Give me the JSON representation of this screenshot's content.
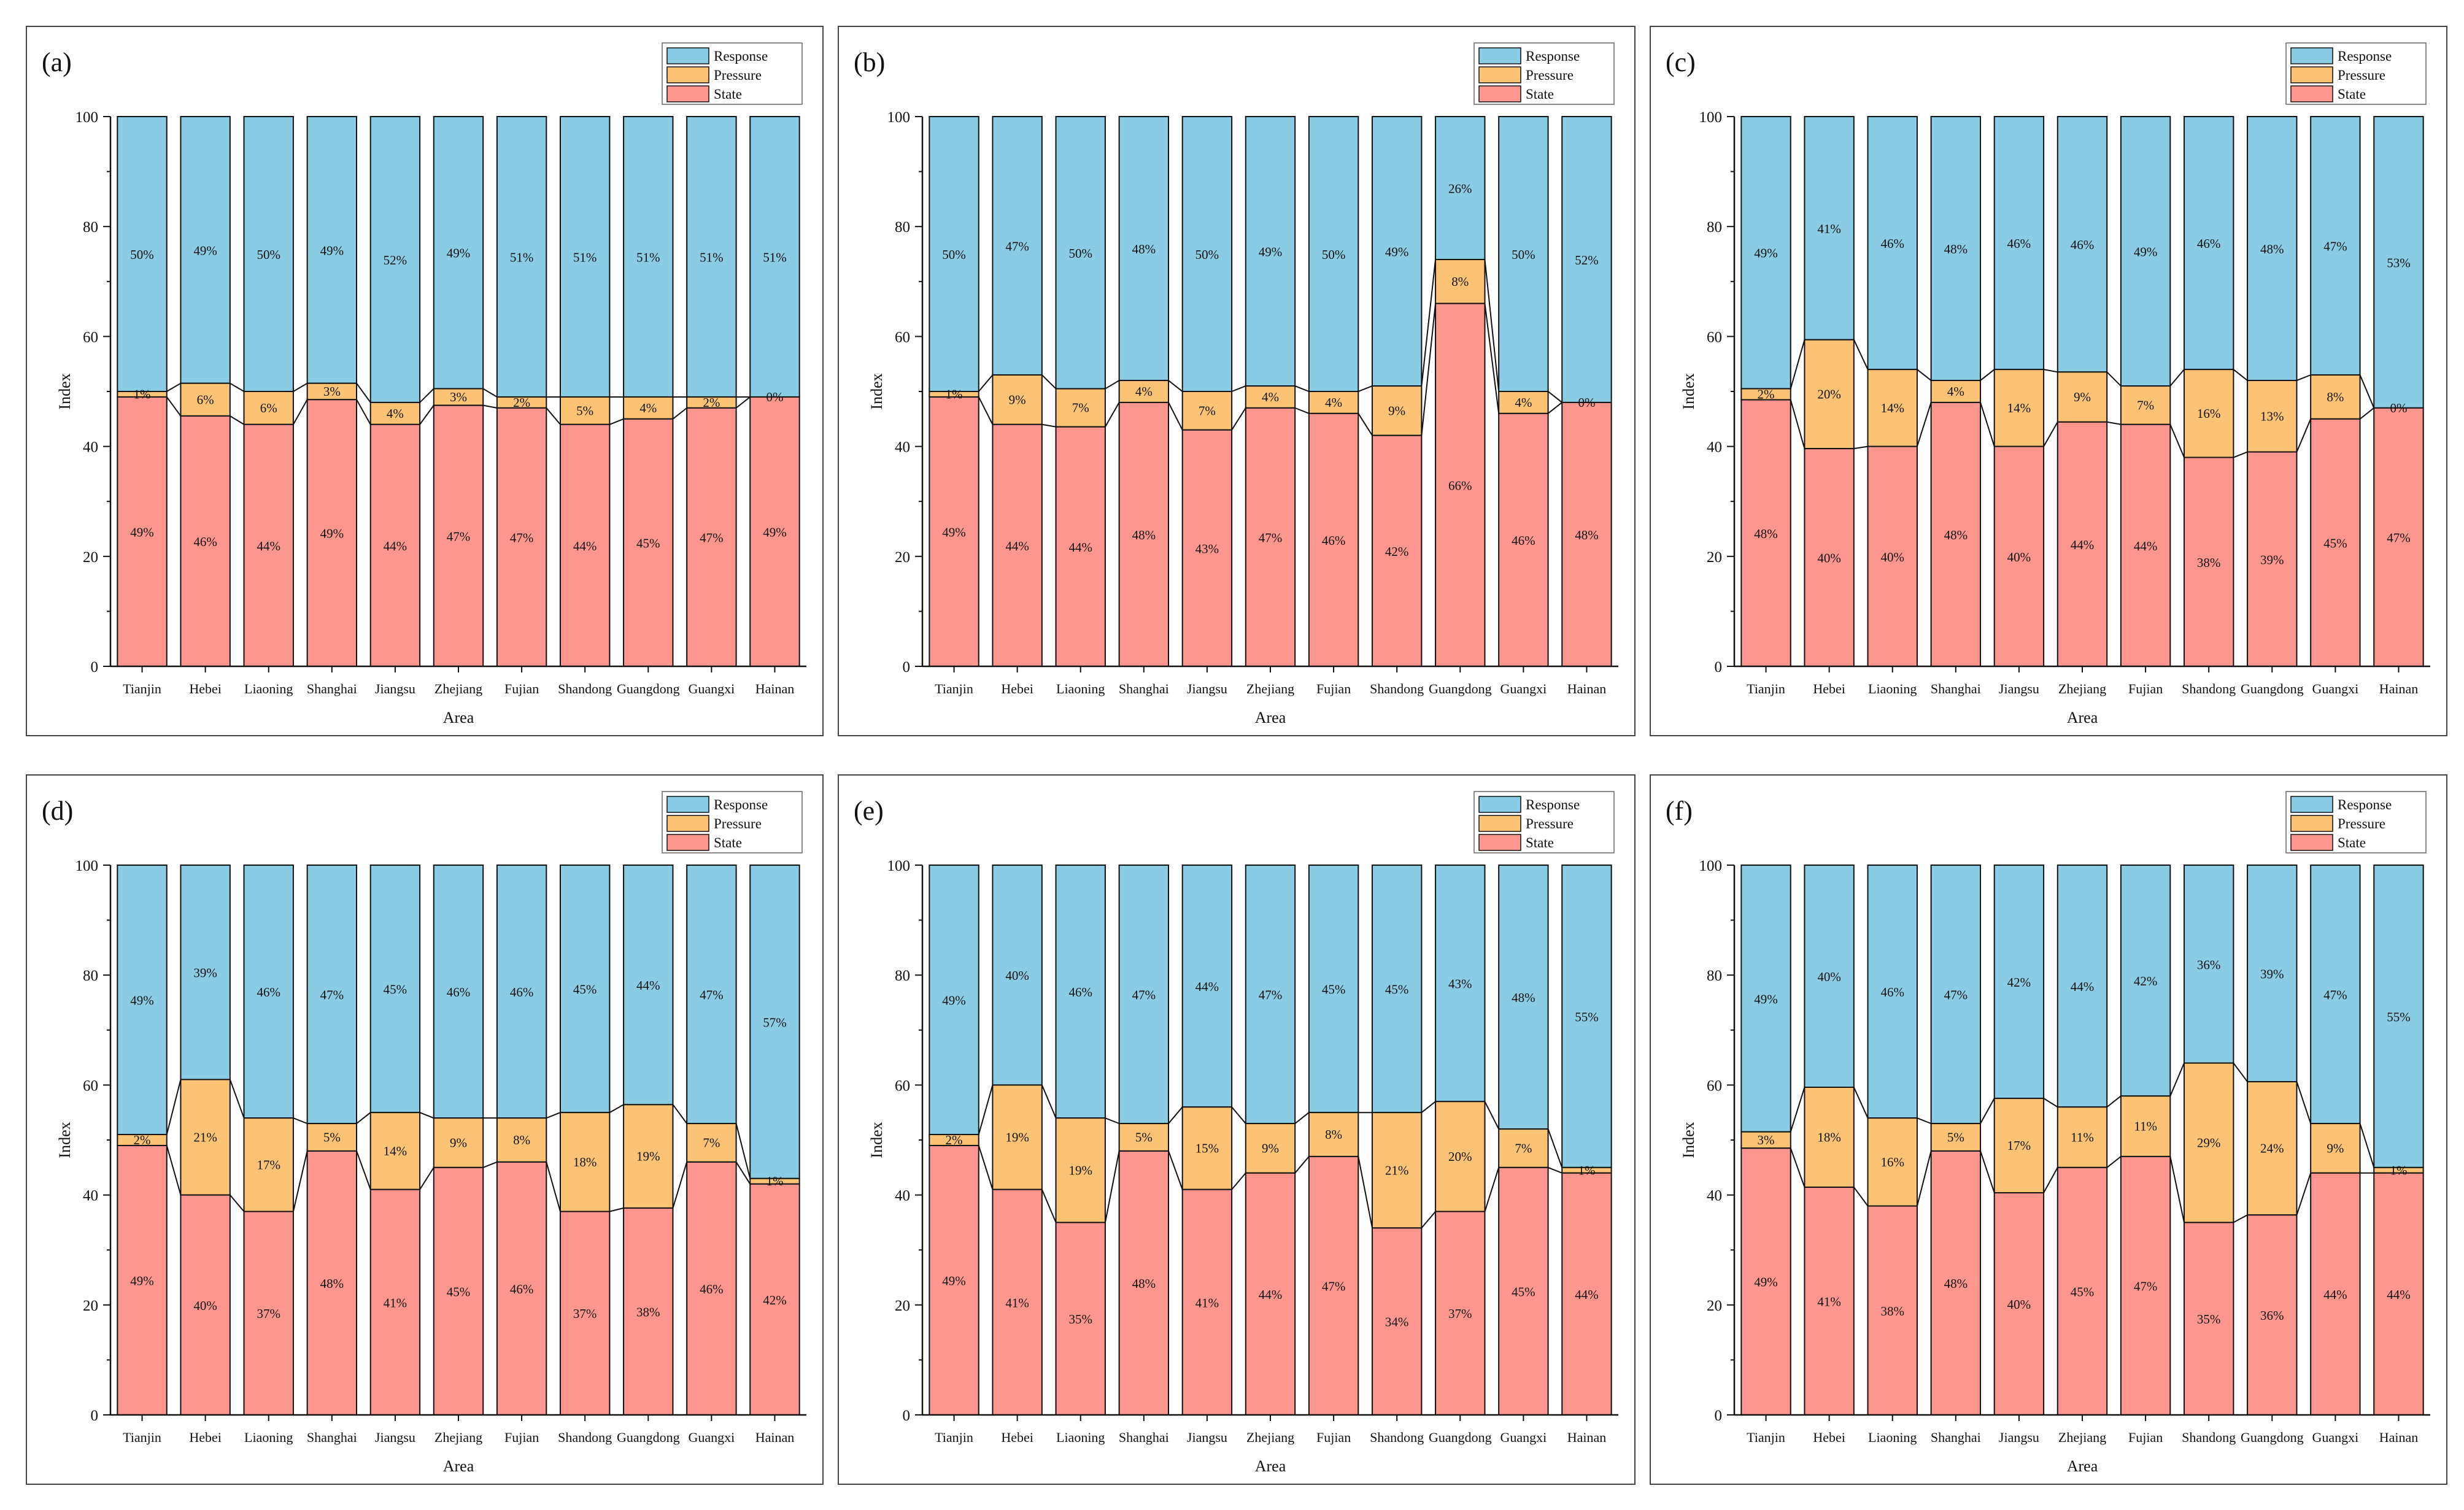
{
  "colors": {
    "response": "#8ACCE3",
    "pressure": "#FBC373",
    "state": "#FC968F",
    "outline": "#111111"
  },
  "chart_data": [
    {
      "type": "bar",
      "stacked": true,
      "panel_label": "(a)",
      "xlabel": "Area",
      "ylabel": "Index",
      "ylim": [
        0,
        100
      ],
      "yticks": [
        "0",
        "20",
        "40",
        "60",
        "80",
        "100"
      ],
      "categories": [
        "Tianjin",
        "Hebei",
        "Liaoning",
        "Shanghai",
        "Jiangsu",
        "Zhejiang",
        "Fujian",
        "Shandong",
        "Guangdong",
        "Guangxi",
        "Hainan"
      ],
      "legend": [
        "Response",
        "Pressure",
        "State"
      ],
      "legend_position": "top-right",
      "series": [
        {
          "name": "State",
          "values": [
            49,
            46,
            44,
            49,
            44,
            47,
            47,
            44,
            45,
            47,
            49
          ],
          "labels": [
            "49%",
            "46%",
            "44%",
            "49%",
            "44%",
            "47%",
            "47%",
            "44%",
            "45%",
            "47%",
            "49%"
          ]
        },
        {
          "name": "Pressure",
          "values": [
            1,
            6,
            6,
            3,
            4,
            3,
            2,
            5,
            4,
            2,
            0
          ],
          "labels": [
            "1%",
            "6%",
            "6%",
            "3%",
            "4%",
            "3%",
            "2%",
            "5%",
            "4%",
            "2%",
            "0%"
          ]
        },
        {
          "name": "Response",
          "values": [
            50,
            49,
            50,
            49,
            52,
            49,
            51,
            51,
            51,
            51,
            51
          ],
          "labels": [
            "50%",
            "49%",
            "50%",
            "49%",
            "52%",
            "49%",
            "51%",
            "51%",
            "51%",
            "51%",
            "51%"
          ]
        }
      ]
    },
    {
      "type": "bar",
      "stacked": true,
      "panel_label": "(b)",
      "xlabel": "Area",
      "ylabel": "Index",
      "ylim": [
        0,
        100
      ],
      "yticks": [
        "0",
        "20",
        "40",
        "60",
        "80",
        "100"
      ],
      "categories": [
        "Tianjin",
        "Hebei",
        "Liaoning",
        "Shanghai",
        "Jiangsu",
        "Zhejiang",
        "Fujian",
        "Shandong",
        "Guangdong",
        "Guangxi",
        "Hainan"
      ],
      "legend": [
        "Response",
        "Pressure",
        "State"
      ],
      "legend_position": "top-right",
      "series": [
        {
          "name": "State",
          "values": [
            49,
            44,
            44,
            48,
            43,
            47,
            46,
            42,
            66,
            46,
            48
          ],
          "labels": [
            "49%",
            "44%",
            "44%",
            "48%",
            "43%",
            "47%",
            "46%",
            "42%",
            "66%",
            "46%",
            "48%"
          ]
        },
        {
          "name": "Pressure",
          "values": [
            1,
            9,
            7,
            4,
            7,
            4,
            4,
            9,
            8,
            4,
            0
          ],
          "labels": [
            "1%",
            "9%",
            "7%",
            "4%",
            "7%",
            "4%",
            "4%",
            "9%",
            "8%",
            "4%",
            "0%"
          ]
        },
        {
          "name": "Response",
          "values": [
            50,
            47,
            50,
            48,
            50,
            49,
            50,
            49,
            26,
            50,
            52
          ],
          "labels": [
            "50%",
            "47%",
            "50%",
            "48%",
            "50%",
            "49%",
            "50%",
            "49%",
            "26%",
            "50%",
            "52%"
          ]
        }
      ]
    },
    {
      "type": "bar",
      "stacked": true,
      "panel_label": "(c)",
      "xlabel": "Area",
      "ylabel": "Index",
      "ylim": [
        0,
        100
      ],
      "yticks": [
        "0",
        "20",
        "40",
        "60",
        "80",
        "100"
      ],
      "categories": [
        "Tianjin",
        "Hebei",
        "Liaoning",
        "Shanghai",
        "Jiangsu",
        "Zhejiang",
        "Fujian",
        "Shandong",
        "Guangdong",
        "Guangxi",
        "Hainan"
      ],
      "legend": [
        "Response",
        "Pressure",
        "State"
      ],
      "legend_position": "top-right",
      "series": [
        {
          "name": "State",
          "values": [
            48,
            40,
            40,
            48,
            40,
            44,
            44,
            38,
            39,
            45,
            47
          ],
          "labels": [
            "48%",
            "40%",
            "40%",
            "48%",
            "40%",
            "44%",
            "44%",
            "38%",
            "39%",
            "45%",
            "47%"
          ]
        },
        {
          "name": "Pressure",
          "values": [
            2,
            20,
            14,
            4,
            14,
            9,
            7,
            16,
            13,
            8,
            0
          ],
          "labels": [
            "2%",
            "20%",
            "14%",
            "4%",
            "14%",
            "9%",
            "7%",
            "16%",
            "13%",
            "8%",
            "0%"
          ]
        },
        {
          "name": "Response",
          "values": [
            49,
            41,
            46,
            48,
            46,
            46,
            49,
            46,
            48,
            47,
            53
          ],
          "labels": [
            "49%",
            "41%",
            "46%",
            "48%",
            "46%",
            "46%",
            "49%",
            "46%",
            "48%",
            "47%",
            "53%"
          ]
        }
      ]
    },
    {
      "type": "bar",
      "stacked": true,
      "panel_label": "(d)",
      "xlabel": "Area",
      "ylabel": "Index",
      "ylim": [
        0,
        100
      ],
      "yticks": [
        "0",
        "20",
        "40",
        "60",
        "80",
        "100"
      ],
      "categories": [
        "Tianjin",
        "Hebei",
        "Liaoning",
        "Shanghai",
        "Jiangsu",
        "Zhejiang",
        "Fujian",
        "Shandong",
        "Guangdong",
        "Guangxi",
        "Hainan"
      ],
      "legend": [
        "Response",
        "Pressure",
        "State"
      ],
      "legend_position": "top-right",
      "series": [
        {
          "name": "State",
          "values": [
            49,
            40,
            37,
            48,
            41,
            45,
            46,
            37,
            38,
            46,
            42
          ],
          "labels": [
            "49%",
            "40%",
            "37%",
            "48%",
            "41%",
            "45%",
            "46%",
            "37%",
            "38%",
            "46%",
            "42%"
          ]
        },
        {
          "name": "Pressure",
          "values": [
            2,
            21,
            17,
            5,
            14,
            9,
            8,
            18,
            19,
            7,
            1
          ],
          "labels": [
            "2%",
            "21%",
            "17%",
            "5%",
            "14%",
            "9%",
            "8%",
            "18%",
            "19%",
            "7%",
            "1%"
          ]
        },
        {
          "name": "Response",
          "values": [
            49,
            39,
            46,
            47,
            45,
            46,
            46,
            45,
            44,
            47,
            57
          ],
          "labels": [
            "49%",
            "39%",
            "46%",
            "47%",
            "45%",
            "46%",
            "46%",
            "45%",
            "44%",
            "47%",
            "57%"
          ]
        }
      ]
    },
    {
      "type": "bar",
      "stacked": true,
      "panel_label": "(e)",
      "xlabel": "Area",
      "ylabel": "Index",
      "ylim": [
        0,
        100
      ],
      "yticks": [
        "0",
        "20",
        "40",
        "60",
        "80",
        "100"
      ],
      "categories": [
        "Tianjin",
        "Hebei",
        "Liaoning",
        "Shanghai",
        "Jiangsu",
        "Zhejiang",
        "Fujian",
        "Shandong",
        "Guangdong",
        "Guangxi",
        "Hainan"
      ],
      "legend": [
        "Response",
        "Pressure",
        "State"
      ],
      "legend_position": "top-right",
      "series": [
        {
          "name": "State",
          "values": [
            49,
            41,
            35,
            48,
            41,
            44,
            47,
            34,
            37,
            45,
            44
          ],
          "labels": [
            "49%",
            "41%",
            "35%",
            "48%",
            "41%",
            "44%",
            "47%",
            "34%",
            "37%",
            "45%",
            "44%"
          ]
        },
        {
          "name": "Pressure",
          "values": [
            2,
            19,
            19,
            5,
            15,
            9,
            8,
            21,
            20,
            7,
            1
          ],
          "labels": [
            "2%",
            "19%",
            "19%",
            "5%",
            "15%",
            "9%",
            "8%",
            "21%",
            "20%",
            "7%",
            "1%"
          ]
        },
        {
          "name": "Response",
          "values": [
            49,
            40,
            46,
            47,
            44,
            47,
            45,
            45,
            43,
            48,
            55
          ],
          "labels": [
            "49%",
            "40%",
            "46%",
            "47%",
            "44%",
            "47%",
            "45%",
            "45%",
            "43%",
            "48%",
            "55%"
          ]
        }
      ]
    },
    {
      "type": "bar",
      "stacked": true,
      "panel_label": "(f)",
      "xlabel": "Area",
      "ylabel": "Index",
      "ylim": [
        0,
        100
      ],
      "yticks": [
        "0",
        "20",
        "40",
        "60",
        "80",
        "100"
      ],
      "categories": [
        "Tianjin",
        "Hebei",
        "Liaoning",
        "Shanghai",
        "Jiangsu",
        "Zhejiang",
        "Fujian",
        "Shandong",
        "Guangdong",
        "Guangxi",
        "Hainan"
      ],
      "legend": [
        "Response",
        "Pressure",
        "State"
      ],
      "legend_position": "top-right",
      "series": [
        {
          "name": "State",
          "values": [
            49,
            41,
            38,
            48,
            40,
            45,
            47,
            35,
            36,
            44,
            44
          ],
          "labels": [
            "49%",
            "41%",
            "38%",
            "48%",
            "40%",
            "45%",
            "47%",
            "35%",
            "36%",
            "44%",
            "44%"
          ]
        },
        {
          "name": "Pressure",
          "values": [
            3,
            18,
            16,
            5,
            17,
            11,
            11,
            29,
            24,
            9,
            1
          ],
          "labels": [
            "3%",
            "18%",
            "16%",
            "5%",
            "17%",
            "11%",
            "11%",
            "29%",
            "24%",
            "9%",
            "1%"
          ]
        },
        {
          "name": "Response",
          "values": [
            49,
            40,
            46,
            47,
            42,
            44,
            42,
            36,
            39,
            47,
            55
          ],
          "labels": [
            "49%",
            "40%",
            "46%",
            "47%",
            "42%",
            "44%",
            "42%",
            "36%",
            "39%",
            "47%",
            "55%"
          ]
        }
      ]
    }
  ]
}
